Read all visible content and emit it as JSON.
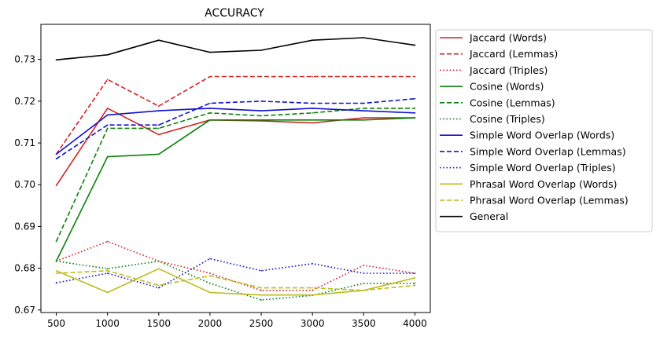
{
  "chart_data": {
    "type": "line",
    "title": "ACCURACY",
    "xlabel": "",
    "ylabel": "",
    "x": [
      500,
      1000,
      1500,
      2000,
      2500,
      3000,
      3500,
      4000
    ],
    "xticks": [
      "500",
      "1000",
      "1500",
      "2000",
      "2500",
      "3000",
      "3500",
      "4000"
    ],
    "yticks": [
      "0.67",
      "0.68",
      "0.69",
      "0.70",
      "0.71",
      "0.72",
      "0.73"
    ],
    "xlim": [
      350,
      4150
    ],
    "ylim": [
      0.6694,
      0.7384
    ],
    "legend_position": "outside-right",
    "series": [
      {
        "name": "Jaccard (Words)",
        "color": "#d62020",
        "dash": "solid",
        "values": [
          0.6998,
          0.7183,
          0.712,
          0.7155,
          0.7153,
          0.7148,
          0.716,
          0.716
        ]
      },
      {
        "name": "Jaccard (Lemmas)",
        "color": "#d62020",
        "dash": "dashed",
        "values": [
          0.7073,
          0.7252,
          0.7188,
          0.7259,
          0.7259,
          0.7259,
          0.7259,
          0.7259
        ]
      },
      {
        "name": "Jaccard (Triples)",
        "color": "#d62020",
        "dash": "dotted",
        "values": [
          0.6817,
          0.6864,
          0.6817,
          0.6788,
          0.6747,
          0.6747,
          0.6807,
          0.6788
        ]
      },
      {
        "name": "Cosine (Words)",
        "color": "#0a800a",
        "dash": "solid",
        "values": [
          0.6817,
          0.7067,
          0.7073,
          0.7155,
          0.7155,
          0.7155,
          0.7155,
          0.716
        ]
      },
      {
        "name": "Cosine (Lemmas)",
        "color": "#0a800a",
        "dash": "dashed",
        "values": [
          0.6864,
          0.7135,
          0.7135,
          0.7172,
          0.7165,
          0.7172,
          0.7183,
          0.7183
        ]
      },
      {
        "name": "Cosine (Triples)",
        "color": "#0a800a",
        "dash": "dotted",
        "values": [
          0.6817,
          0.6799,
          0.6817,
          0.6764,
          0.6724,
          0.6735,
          0.6764,
          0.6764
        ]
      },
      {
        "name": "Simple Word Overlap (Words)",
        "color": "#1010d0",
        "dash": "solid",
        "values": [
          0.7073,
          0.7167,
          0.7177,
          0.7183,
          0.7177,
          0.7183,
          0.7177,
          0.7172
        ]
      },
      {
        "name": "Simple Word Overlap (Lemmas)",
        "color": "#1010d0",
        "dash": "dashed",
        "values": [
          0.7062,
          0.7143,
          0.7143,
          0.7195,
          0.72,
          0.7195,
          0.7195,
          0.7206
        ]
      },
      {
        "name": "Simple Word Overlap (Triples)",
        "color": "#1010d0",
        "dash": "dotted",
        "values": [
          0.6765,
          0.6788,
          0.6753,
          0.6823,
          0.6794,
          0.6811,
          0.6788,
          0.6788
        ]
      },
      {
        "name": "Phrasal Word Overlap (Words)",
        "color": "#bcbc1a",
        "dash": "solid",
        "values": [
          0.6794,
          0.6742,
          0.6799,
          0.6742,
          0.6736,
          0.6736,
          0.6747,
          0.6777
        ]
      },
      {
        "name": "Phrasal Word Overlap (Lemmas)",
        "color": "#bcbc1a",
        "dash": "dashed",
        "values": [
          0.6788,
          0.6794,
          0.6759,
          0.6782,
          0.6753,
          0.6753,
          0.6747,
          0.6759
        ]
      },
      {
        "name": "General",
        "color": "#000000",
        "dash": "solid",
        "values": [
          0.7299,
          0.7311,
          0.7346,
          0.7317,
          0.7322,
          0.7346,
          0.7352,
          0.7334
        ]
      }
    ]
  }
}
